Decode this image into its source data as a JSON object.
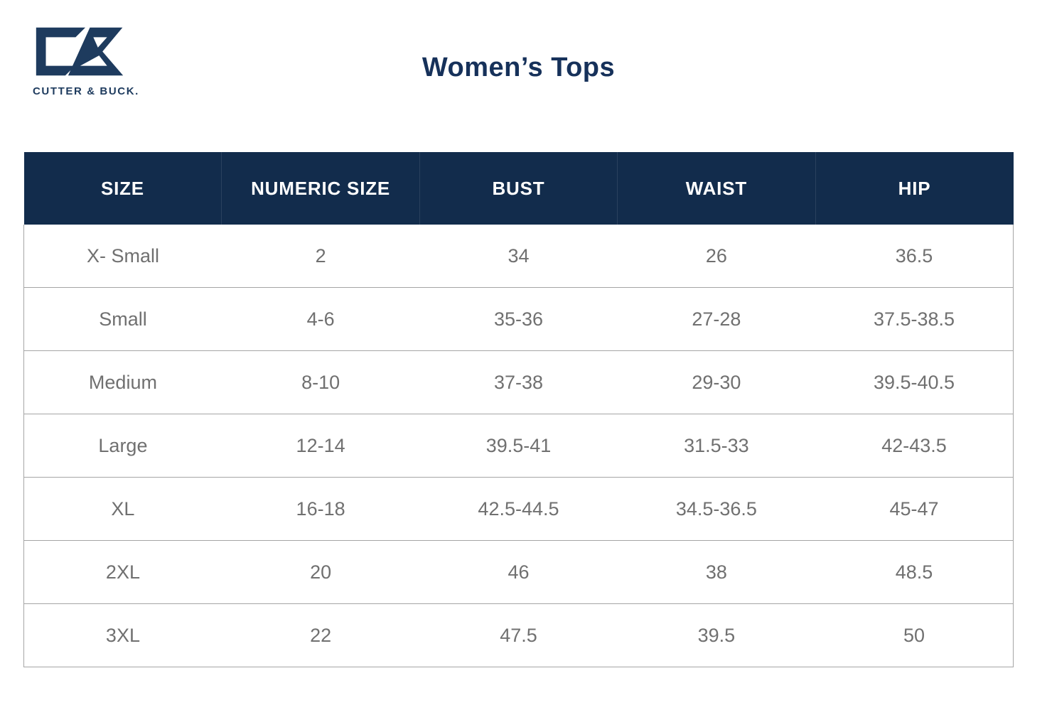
{
  "brand": {
    "wordmark": "CUTTER & BUCK.",
    "logo_mark": "cutter-buck-cb-monogram",
    "logo_color": "#1e3b5e"
  },
  "title": "Women’s Tops",
  "table": {
    "columns": [
      "SIZE",
      "NUMERIC SIZE",
      "BUST",
      "WAIST",
      "HIP"
    ],
    "rows": [
      [
        "X- Small",
        "2",
        "34",
        "26",
        "36.5"
      ],
      [
        "Small",
        "4-6",
        "35-36",
        "27-28",
        "37.5-38.5"
      ],
      [
        "Medium",
        "8-10",
        "37-38",
        "29-30",
        "39.5-40.5"
      ],
      [
        "Large",
        "12-14",
        "39.5-41",
        "31.5-33",
        "42-43.5"
      ],
      [
        "XL",
        "16-18",
        "42.5-44.5",
        "34.5-36.5",
        "45-47"
      ],
      [
        "2XL",
        "20",
        "46",
        "38",
        "48.5"
      ],
      [
        "3XL",
        "22",
        "47.5",
        "39.5",
        "50"
      ]
    ]
  },
  "colors": {
    "header_background": "#122c4c",
    "header_text": "#ffffff",
    "title_text": "#16315a",
    "cell_text": "#707070",
    "row_border": "#a5a5a5",
    "logo_navy": "#1e3b5e"
  }
}
